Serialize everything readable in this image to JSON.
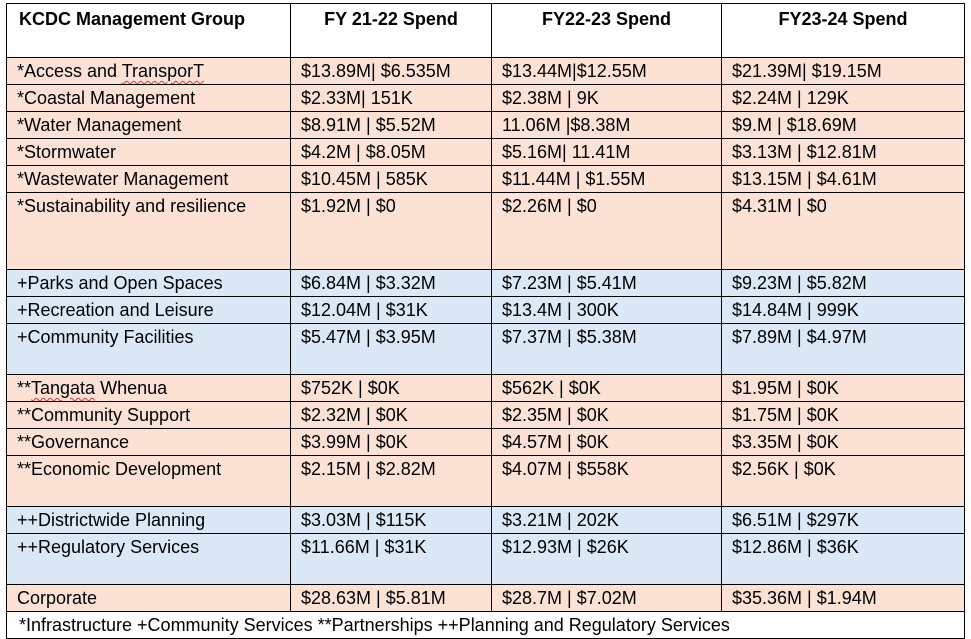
{
  "table": {
    "headers": [
      "KCDC Management Group",
      "FY 21-22 Spend",
      "FY22-23 Spend",
      "FY23-24 Spend"
    ],
    "rows": [
      {
        "name_prefix": "*Access and ",
        "name_mark": "TransporT",
        "name_suffix": "",
        "cells": [
          "$13.89M| $6.535M",
          "$13.44M|$12.55M",
          "$21.39M| $19.15M"
        ]
      },
      {
        "name": "*Coastal Management",
        "cells": [
          "$2.33M| 151K",
          "$2.38M | 9K",
          "$2.24M | 129K"
        ]
      },
      {
        "name": "*Water Management",
        "cells": [
          "$8.91M | $5.52M",
          "11.06M |$8.38M",
          "$9.M | $18.69M"
        ]
      },
      {
        "name": "*Stormwater",
        "cells": [
          "$4.2M | $8.05M",
          "$5.16M| 11.41M",
          "$3.13M | $12.81M"
        ]
      },
      {
        "name": "*Wastewater Management",
        "cells": [
          "$10.45M | 585K",
          "$11.44M | $1.55M",
          "$13.15M | $4.61M"
        ]
      },
      {
        "name": "*Sustainability and resilience",
        "cells": [
          "$1.92M | $0",
          "$2.26M | $0",
          "$4.31M | $0"
        ]
      },
      {
        "name": "+Parks and Open Spaces",
        "cells": [
          "$6.84M | $3.32M",
          "$7.23M | $5.41M",
          "$9.23M | $5.82M"
        ]
      },
      {
        "name": "+Recreation and Leisure",
        "cells": [
          "$12.04M | $31K",
          "$13.4M | 300K",
          "$14.84M | 999K"
        ]
      },
      {
        "name": "+Community Facilities",
        "cells": [
          "$5.47M | $3.95M",
          "$7.37M | $5.38M",
          "$7.89M | $4.97M"
        ]
      },
      {
        "name_prefix": "**",
        "name_mark": "Tangata",
        "name_suffix": " Whenua",
        "cells": [
          "$752K | $0K",
          "$562K | $0K",
          "$1.95M | $0K"
        ]
      },
      {
        "name": "**Community Support",
        "cells": [
          "$2.32M | $0K",
          "$2.35M | $0K",
          "$1.75M | $0K"
        ]
      },
      {
        "name": "**Governance",
        "cells": [
          "$3.99M | $0K",
          "$4.57M | $0K",
          "$3.35M | $0K"
        ]
      },
      {
        "name": "**Economic Development",
        "cells": [
          "$2.15M | $2.82M",
          "$4.07M | $558K",
          "$2.56K | $0K"
        ]
      },
      {
        "name": "++Districtwide Planning",
        "cells": [
          "$3.03M | $115K",
          "$3.21M | 202K",
          "$6.51M | $297K"
        ]
      },
      {
        "name": "++Regulatory Services",
        "cells": [
          "$11.66M | $31K",
          "$12.93M | $26K",
          "$12.86M | $36K"
        ]
      },
      {
        "name": "Corporate",
        "cells": [
          "$28.63M | $5.81M",
          "$28.7M | $7.02M",
          "$35.36M | $1.94M"
        ]
      }
    ],
    "footnote": "*Infrastructure +Community Services **Partnerships ++Planning and Regulatory Services"
  },
  "colors": {
    "infrastructure_fill": "#fbe2d5",
    "community_fill": "#dbe9f7",
    "spellcheck_underline": "#d23b3b"
  }
}
